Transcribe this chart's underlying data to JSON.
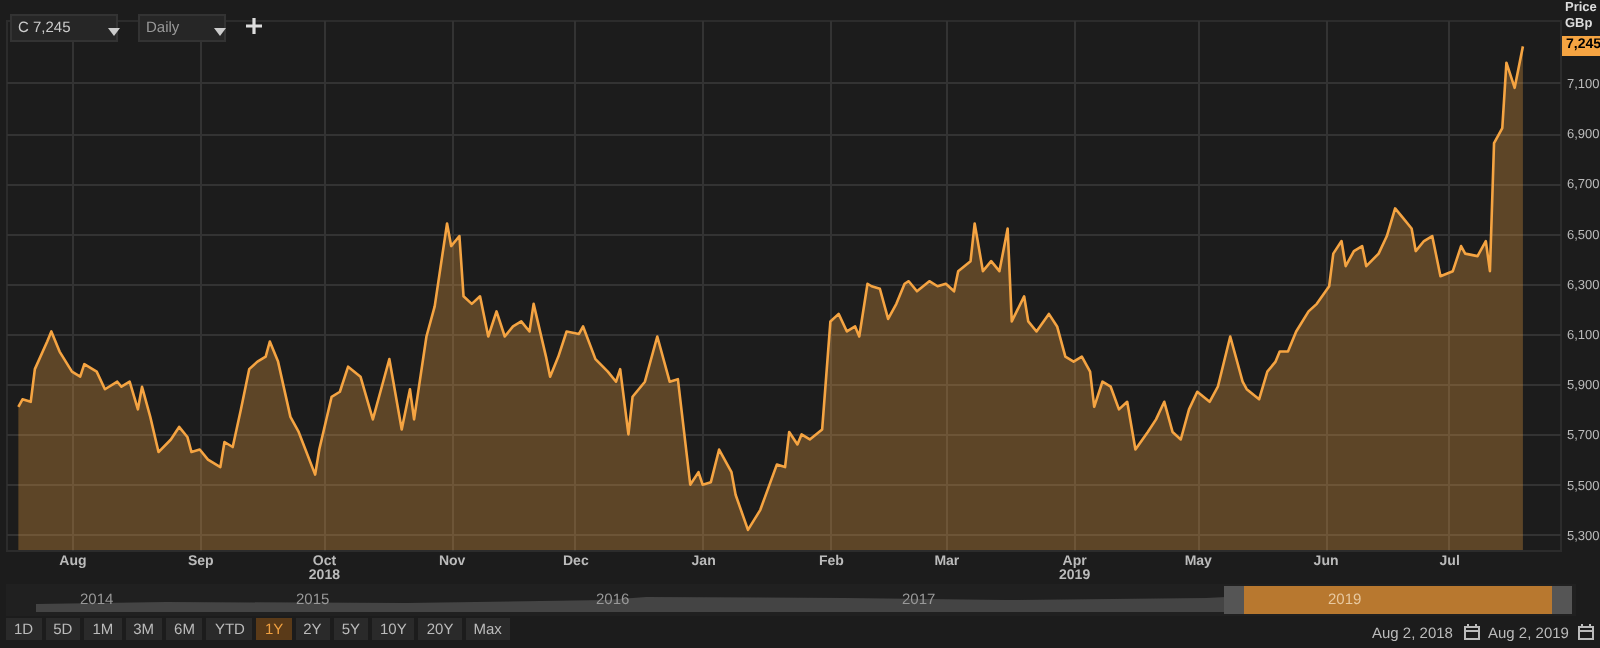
{
  "chart_data": {
    "type": "area",
    "ylabel": "Price\nGBp",
    "x": [
      "2018-08-02",
      "2018-08-03",
      "2018-08-05",
      "2018-08-06",
      "2018-08-09",
      "2018-08-10",
      "2018-08-12",
      "2018-08-15",
      "2018-08-17",
      "2018-08-18",
      "2018-08-21",
      "2018-08-23",
      "2018-08-26",
      "2018-08-27",
      "2018-08-29",
      "2018-08-31",
      "2018-09-01",
      "2018-09-03",
      "2018-09-05",
      "2018-09-08",
      "2018-09-10",
      "2018-09-12",
      "2018-09-13",
      "2018-09-15",
      "2018-09-17",
      "2018-09-20",
      "2018-09-21",
      "2018-09-23",
      "2018-09-25",
      "2018-09-27",
      "2018-09-29",
      "2018-10-01",
      "2018-10-02",
      "2018-10-04",
      "2018-10-07",
      "2018-10-09",
      "2018-10-13",
      "2018-10-14",
      "2018-10-17",
      "2018-10-19",
      "2018-10-21",
      "2018-10-24",
      "2018-10-27",
      "2018-10-29",
      "2018-10-31",
      "2018-11-03",
      "2018-11-05",
      "2018-11-06",
      "2018-11-09",
      "2018-11-11",
      "2018-11-14",
      "2018-11-15",
      "2018-11-17",
      "2018-11-18",
      "2018-11-20",
      "2018-11-22",
      "2018-11-24",
      "2018-11-26",
      "2018-11-28",
      "2018-11-30",
      "2018-12-02",
      "2018-12-04",
      "2018-12-05",
      "2018-12-08",
      "2018-12-09",
      "2018-12-11",
      "2018-12-13",
      "2018-12-16",
      "2018-12-17",
      "2018-12-20",
      "2018-12-23",
      "2018-12-25",
      "2018-12-26",
      "2018-12-28",
      "2018-12-29",
      "2019-01-01",
      "2019-01-04",
      "2019-01-07",
      "2019-01-09",
      "2019-01-12",
      "2019-01-14",
      "2019-01-15",
      "2019-01-17",
      "2019-01-19",
      "2019-01-22",
      "2019-01-23",
      "2019-01-26",
      "2019-01-29",
      "2019-02-02",
      "2019-02-04",
      "2019-02-05",
      "2019-02-07",
      "2019-02-08",
      "2019-02-10",
      "2019-02-13",
      "2019-02-15",
      "2019-02-17",
      "2019-02-19",
      "2019-02-21",
      "2019-02-22",
      "2019-02-24",
      "2019-02-25",
      "2019-02-27",
      "2019-03-01",
      "2019-03-03",
      "2019-03-05",
      "2019-03-06",
      "2019-03-08",
      "2019-03-11",
      "2019-03-13",
      "2019-03-15",
      "2019-03-17",
      "2019-03-18",
      "2019-03-21",
      "2019-03-22",
      "2019-03-24",
      "2019-03-26",
      "2019-03-28",
      "2019-03-30",
      "2019-03-31",
      "2019-04-03",
      "2019-04-04",
      "2019-04-06",
      "2019-04-09",
      "2019-04-11",
      "2019-04-13",
      "2019-04-15",
      "2019-04-17",
      "2019-04-19",
      "2019-04-20",
      "2019-04-22",
      "2019-04-24",
      "2019-04-26",
      "2019-04-28",
      "2019-04-30",
      "2019-05-03",
      "2019-05-05",
      "2019-05-07",
      "2019-05-09",
      "2019-05-11",
      "2019-05-13",
      "2019-05-15",
      "2019-05-18",
      "2019-05-20",
      "2019-05-23",
      "2019-05-26",
      "2019-05-27",
      "2019-05-30",
      "2019-06-01",
      "2019-06-03",
      "2019-06-04",
      "2019-06-06",
      "2019-06-08",
      "2019-06-11",
      "2019-06-13",
      "2019-06-16",
      "2019-06-17",
      "2019-06-19",
      "2019-06-20",
      "2019-06-22",
      "2019-06-24",
      "2019-06-25",
      "2019-06-28",
      "2019-06-30",
      "2019-07-02",
      "2019-07-04",
      "2019-07-06",
      "2019-07-07",
      "2019-07-09",
      "2019-07-11",
      "2019-07-13",
      "2019-07-16",
      "2019-07-18",
      "2019-07-19",
      "2019-07-22",
      "2019-07-24",
      "2019-07-25",
      "2019-07-26",
      "2019-07-28",
      "2019-07-29",
      "2019-07-31",
      "2019-08-02"
    ],
    "series": [
      {
        "color": "#f5a442",
        "values": [
          5810,
          5840,
          5830,
          5960,
          6070,
          6110,
          6030,
          5950,
          5930,
          5980,
          5950,
          5880,
          5910,
          5890,
          5910,
          5800,
          5890,
          5770,
          5630,
          5680,
          5730,
          5690,
          5630,
          5640,
          5600,
          5570,
          5670,
          5650,
          5800,
          5960,
          5990,
          6010,
          6070,
          5990,
          5770,
          5710,
          5540,
          5640,
          5850,
          5870,
          5970,
          5930,
          5760,
          5880,
          6000,
          5720,
          5880,
          5760,
          6090,
          6210,
          6540,
          6450,
          6490,
          6250,
          6220,
          6250,
          6090,
          6190,
          6090,
          6130,
          6150,
          6110,
          6220,
          6010,
          5930,
          6010,
          6110,
          6100,
          6130,
          6000,
          5950,
          5910,
          5960,
          5700,
          5850,
          5910,
          6090,
          5910,
          5920,
          5500,
          5550,
          5500,
          5510,
          5640,
          5550,
          5460,
          5320,
          5400,
          5580,
          5570,
          5710,
          5660,
          5700,
          5680,
          5720,
          6150,
          6180,
          6110,
          6130,
          6090,
          6300,
          6290,
          6280,
          6160,
          6220,
          6300,
          6310,
          6270,
          6310,
          6290,
          6300,
          6270,
          6350,
          6390,
          6540,
          6350,
          6390,
          6350,
          6520,
          6150,
          6250,
          6150,
          6110,
          6180,
          6130,
          6010,
          5990,
          6010,
          5950,
          5810,
          5910,
          5890,
          5800,
          5830,
          5640,
          5710,
          5760,
          5830,
          5710,
          5680,
          5800,
          5870,
          5830,
          5890,
          6090,
          5910,
          5880,
          5840,
          5950,
          5990,
          6030,
          6030,
          6110,
          6190,
          6220,
          6290,
          6420,
          6470,
          6370,
          6430,
          6450,
          6370,
          6420,
          6490,
          6600,
          6560,
          6520,
          6430,
          6470,
          6490,
          6330,
          6350,
          6450,
          6420,
          6410,
          6470,
          6350,
          6860,
          6920,
          7180,
          7080,
          7245
        ]
      }
    ],
    "xlim": [
      "2018-07-30",
      "2019-08-11"
    ],
    "ylim": [
      5240,
      7350
    ],
    "yticks": [
      {
        "value": 5300,
        "label": "5,300"
      },
      {
        "value": 5500,
        "label": "5,500"
      },
      {
        "value": 5700,
        "label": "5,700"
      },
      {
        "value": 5900,
        "label": "5,900"
      },
      {
        "value": 6100,
        "label": "6,100"
      },
      {
        "value": 6300,
        "label": "6,300"
      },
      {
        "value": 6500,
        "label": "6,500"
      },
      {
        "value": 6700,
        "label": "6,700"
      },
      {
        "value": 6900,
        "label": "6,900"
      },
      {
        "value": 7100,
        "label": "7,100"
      }
    ],
    "xticks": [
      {
        "value": "2018-08-15",
        "label": "Aug"
      },
      {
        "value": "2018-09-15",
        "label": "Sep"
      },
      {
        "value": "2018-10-15",
        "label": "Oct\n2018"
      },
      {
        "value": "2018-11-15",
        "label": "Nov"
      },
      {
        "value": "2018-12-15",
        "label": "Dec"
      },
      {
        "value": "2019-01-15",
        "label": "Jan"
      },
      {
        "value": "2019-02-15",
        "label": "Feb"
      },
      {
        "value": "2019-03-15",
        "label": "Mar"
      },
      {
        "value": "2019-04-15",
        "label": "Apr\n2019"
      },
      {
        "value": "2019-05-15",
        "label": "May"
      },
      {
        "value": "2019-06-15",
        "label": "Jun"
      },
      {
        "value": "2019-07-15",
        "label": "Jul"
      }
    ],
    "grid": true,
    "annotations": [
      "C 7,245",
      "Daily",
      {
        "text": "7,245",
        "x": "2019-08-02",
        "y": 7245
      },
      "2014",
      "2015",
      "2016",
      "2017",
      "2019",
      "1D",
      "5D",
      "1M",
      "3M",
      "6M",
      "YTD",
      "1Y",
      "2Y",
      "5Y",
      "10Y",
      "20Y",
      "Max",
      "Aug 2, 2018",
      "Aug 2, 2019"
    ]
  }
}
